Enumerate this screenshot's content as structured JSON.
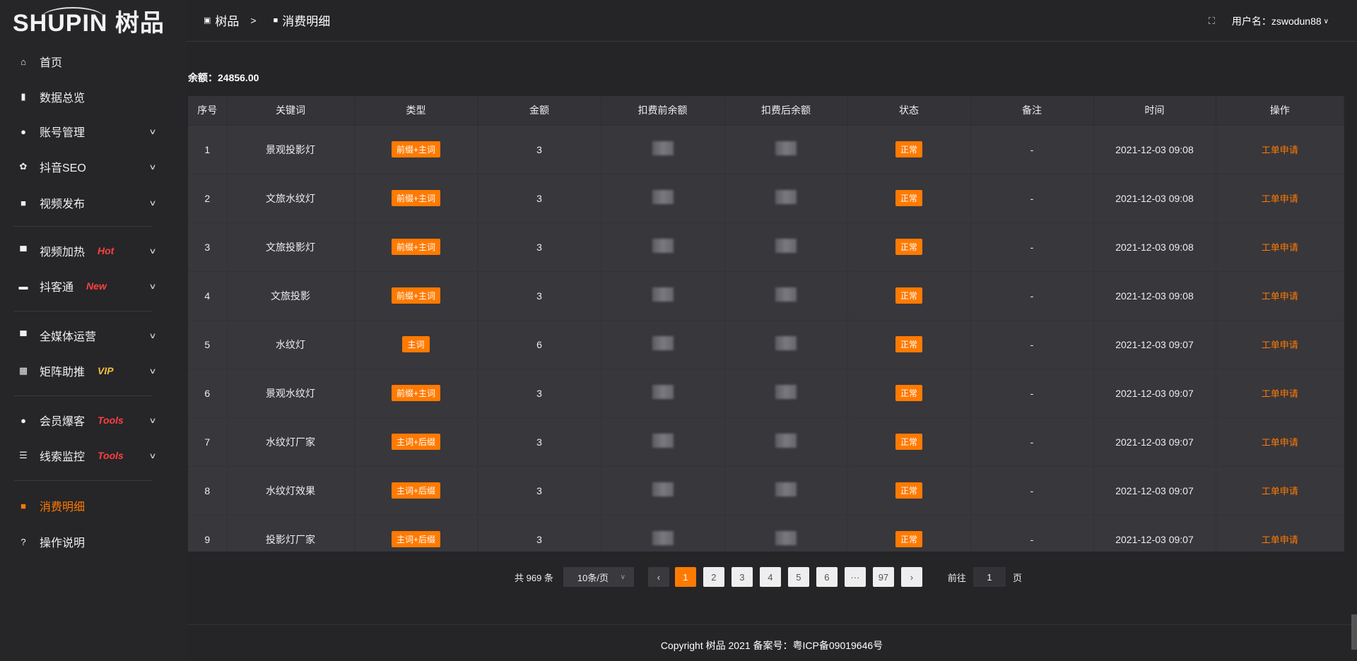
{
  "logo": {
    "text": "SHUPIN 树品"
  },
  "sidebar": {
    "items": [
      {
        "icon": "home-icon",
        "glyph": "⌂",
        "label": "首页"
      },
      {
        "icon": "bar-chart-icon",
        "glyph": "▮",
        "label": "数据总览"
      },
      {
        "icon": "user-icon",
        "glyph": "●",
        "label": "账号管理",
        "chevron": true
      },
      {
        "icon": "gear-icon",
        "glyph": "✿",
        "label": "抖音SEO",
        "chevron": true
      },
      {
        "icon": "video-icon",
        "glyph": "■",
        "label": "视频发布",
        "chevron": true
      },
      {
        "icon": "monitor-icon",
        "glyph": "▀",
        "label": "视频加热",
        "badge": "Hot",
        "badge_color": "#ff4040",
        "chevron": true
      },
      {
        "icon": "chat-icon",
        "glyph": "▬",
        "label": "抖客通",
        "badge": "New",
        "badge_color": "#ff4040",
        "chevron": true
      },
      {
        "icon": "desktop-icon",
        "glyph": "▀",
        "label": "全媒体运营",
        "chevron": true
      },
      {
        "icon": "grid-icon",
        "glyph": "▦",
        "label": "矩阵助推",
        "badge": "VIP",
        "badge_color": "#f0c040",
        "chevron": true
      },
      {
        "icon": "user-icon",
        "glyph": "●",
        "label": "会员爆客",
        "badge": "Tools",
        "badge_color": "#ff4040",
        "chevron": true
      },
      {
        "icon": "sliders-icon",
        "glyph": "☰",
        "label": "线索监控",
        "badge": "Tools",
        "badge_color": "#ff4040",
        "chevron": true
      },
      {
        "icon": "wallet-icon",
        "glyph": "■",
        "label": "消费明细",
        "active": true
      },
      {
        "icon": "help-icon",
        "glyph": "?",
        "label": "操作说明"
      }
    ]
  },
  "header": {
    "crumb_home": "树品",
    "crumb_sep": ">",
    "crumb_current": "消费明细",
    "user_label": "用户名：zswodun88"
  },
  "balance": "余额：24856.00",
  "table": {
    "columns": [
      "序号",
      "关键词",
      "类型",
      "金额",
      "扣费前余额",
      "扣费后余额",
      "状态",
      "备注",
      "时间",
      "操作"
    ],
    "rows": [
      {
        "no": "1",
        "keyword": "景观投影灯",
        "type": "前缀+主词",
        "amount": "3",
        "status": "正常",
        "note": "-",
        "time": "2021-12-03 09:08",
        "action": "工单申请"
      },
      {
        "no": "2",
        "keyword": "文旅水纹灯",
        "type": "前缀+主词",
        "amount": "3",
        "status": "正常",
        "note": "-",
        "time": "2021-12-03 09:08",
        "action": "工单申请"
      },
      {
        "no": "3",
        "keyword": "文旅投影灯",
        "type": "前缀+主词",
        "amount": "3",
        "status": "正常",
        "note": "-",
        "time": "2021-12-03 09:08",
        "action": "工单申请"
      },
      {
        "no": "4",
        "keyword": "文旅投影",
        "type": "前缀+主词",
        "amount": "3",
        "status": "正常",
        "note": "-",
        "time": "2021-12-03 09:08",
        "action": "工单申请"
      },
      {
        "no": "5",
        "keyword": "水纹灯",
        "type": "主词",
        "amount": "6",
        "status": "正常",
        "note": "-",
        "time": "2021-12-03 09:07",
        "action": "工单申请"
      },
      {
        "no": "6",
        "keyword": "景观水纹灯",
        "type": "前缀+主词",
        "amount": "3",
        "status": "正常",
        "note": "-",
        "time": "2021-12-03 09:07",
        "action": "工单申请"
      },
      {
        "no": "7",
        "keyword": "水纹灯厂家",
        "type": "主词+后缀",
        "amount": "3",
        "status": "正常",
        "note": "-",
        "time": "2021-12-03 09:07",
        "action": "工单申请"
      },
      {
        "no": "8",
        "keyword": "水纹灯效果",
        "type": "主词+后缀",
        "amount": "3",
        "status": "正常",
        "note": "-",
        "time": "2021-12-03 09:07",
        "action": "工单申请"
      },
      {
        "no": "9",
        "keyword": "投影灯厂家",
        "type": "主词+后缀",
        "amount": "3",
        "status": "正常",
        "note": "-",
        "time": "2021-12-03 09:07",
        "action": "工单申请"
      }
    ]
  },
  "pagination": {
    "total": "共 969 条",
    "page_size": "10条/页",
    "pages": [
      "1",
      "2",
      "3",
      "4",
      "5",
      "6",
      "···",
      "97"
    ],
    "current": "1",
    "goto_label": "前往",
    "goto_value": "1",
    "page_suffix": "页"
  },
  "footer": {
    "copyright": "Copyright 树品 2021 备案号：粤ICP备09019646号"
  },
  "colors": {
    "accent": "#ff7a00",
    "background": "#252427",
    "table": "#38373c"
  }
}
